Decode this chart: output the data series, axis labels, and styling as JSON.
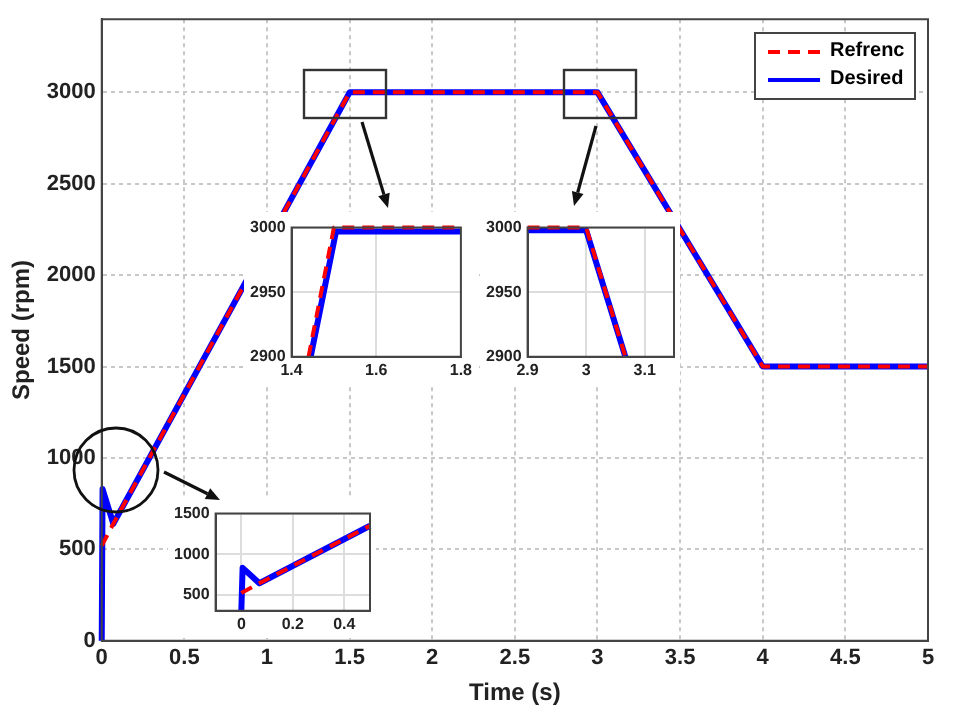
{
  "chart_data": [
    {
      "type": "line",
      "xlabel": "Time (s)",
      "ylabel": "Speed (rpm)",
      "xlim": [
        0,
        5
      ],
      "ylim": [
        0,
        3400
      ],
      "xticks": [
        0,
        0.5,
        1,
        1.5,
        2,
        2.5,
        3,
        3.5,
        4,
        4.5,
        5
      ],
      "yticks": [
        0,
        500,
        1000,
        1500,
        2000,
        2500,
        3000
      ],
      "grid": true,
      "legend": "top right",
      "marker": "none",
      "series": [
        {
          "name": "Refrenc",
          "color": "#ff0000",
          "line_style": "dashed",
          "x": [
            0,
            0.07,
            1.5,
            3,
            4,
            5
          ],
          "values": [
            520,
            640,
            3000,
            3000,
            1500,
            1500
          ]
        },
        {
          "name": "Desired",
          "color": "#0000ff",
          "line_style": "solid",
          "x": [
            0,
            0.005,
            0.07,
            1.5,
            3,
            4,
            5
          ],
          "values": [
            0,
            830,
            640,
            3000,
            3000,
            1500,
            1500
          ]
        }
      ]
    },
    {
      "type": "line",
      "xlim": [
        1.4,
        1.8
      ],
      "ylim": [
        2900,
        3000
      ],
      "xticks": [
        1.4,
        1.6,
        1.8
      ],
      "yticks": [
        2900,
        2950,
        3000
      ],
      "grid": true,
      "legend": false,
      "marker": "none",
      "series": [
        {
          "color": "#ff0000",
          "line_style": "dashed",
          "x": [
            1.44,
            1.5,
            1.8
          ],
          "values": [
            2900,
            3000,
            3000
          ]
        },
        {
          "color": "#0000ff",
          "line_style": "solid",
          "x": [
            1.445,
            1.505,
            1.8
          ],
          "values": [
            2900,
            2997,
            2997
          ]
        }
      ]
    },
    {
      "type": "line",
      "xlim": [
        2.9,
        3.15
      ],
      "ylim": [
        2900,
        3000
      ],
      "xticks": [
        2.9,
        3,
        3.1
      ],
      "yticks": [
        2900,
        2950,
        3000
      ],
      "grid": true,
      "legend": false,
      "marker": "none",
      "series": [
        {
          "color": "#ff0000",
          "line_style": "dashed",
          "x": [
            2.9,
            3,
            3.067
          ],
          "values": [
            3000,
            3000,
            2900
          ]
        },
        {
          "color": "#0000ff",
          "line_style": "solid",
          "x": [
            2.9,
            3,
            3.067
          ],
          "values": [
            2998,
            2998,
            2900
          ]
        }
      ]
    },
    {
      "type": "line",
      "xlim": [
        -0.1,
        0.5
      ],
      "ylim": [
        300,
        1500
      ],
      "xticks": [
        0,
        0.2,
        0.4
      ],
      "yticks": [
        500,
        1000,
        1500
      ],
      "grid": true,
      "legend": false,
      "marker": "none",
      "series": [
        {
          "color": "#ff0000",
          "line_style": "dashed",
          "x": [
            0,
            0.07,
            0.5
          ],
          "values": [
            520,
            640,
            1350
          ]
        },
        {
          "color": "#0000ff",
          "line_style": "solid",
          "x": [
            0,
            0.005,
            0.07,
            0.5
          ],
          "values": [
            300,
            830,
            640,
            1350
          ]
        }
      ]
    }
  ]
}
